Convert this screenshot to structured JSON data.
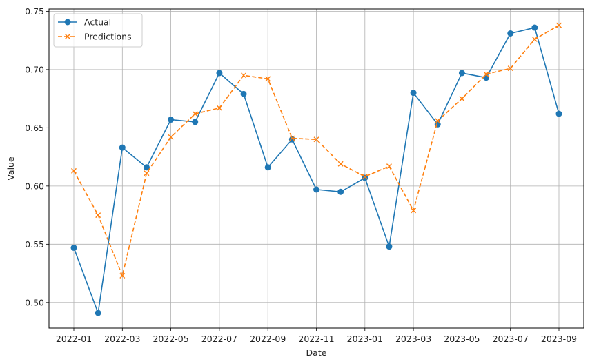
{
  "chart_data": {
    "type": "line",
    "title": "",
    "xlabel": "Date",
    "ylabel": "Value",
    "x": [
      "2022-01",
      "2022-02",
      "2022-03",
      "2022-04",
      "2022-05",
      "2022-06",
      "2022-07",
      "2022-08",
      "2022-09",
      "2022-10",
      "2022-11",
      "2022-12",
      "2023-01",
      "2023-02",
      "2023-03",
      "2023-04",
      "2023-05",
      "2023-06",
      "2023-07",
      "2023-08",
      "2023-09"
    ],
    "x_ticks": [
      "2022-01",
      "2022-03",
      "2022-05",
      "2022-07",
      "2022-09",
      "2022-11",
      "2023-01",
      "2023-03",
      "2023-05",
      "2023-07",
      "2023-09"
    ],
    "y_ticks": [
      0.5,
      0.55,
      0.6,
      0.65,
      0.7,
      0.75
    ],
    "ylim": [
      0.478,
      0.752
    ],
    "grid": true,
    "legend_position": "top-left",
    "series": [
      {
        "name": "Actual",
        "color": "#1f77b4",
        "style": "solid",
        "marker": "circle",
        "values": [
          0.547,
          0.491,
          0.633,
          0.616,
          0.657,
          0.655,
          0.697,
          0.679,
          0.616,
          0.64,
          0.597,
          0.595,
          0.607,
          0.548,
          0.68,
          0.653,
          0.697,
          0.693,
          0.731,
          0.736,
          0.662
        ]
      },
      {
        "name": "Predictions",
        "color": "#ff7f0e",
        "style": "dashed",
        "marker": "x",
        "values": [
          0.613,
          0.575,
          0.523,
          0.611,
          0.642,
          0.662,
          0.667,
          0.695,
          0.692,
          0.641,
          0.64,
          0.619,
          0.608,
          0.617,
          0.579,
          0.656,
          0.675,
          0.696,
          0.701,
          0.726,
          0.738
        ]
      }
    ]
  }
}
